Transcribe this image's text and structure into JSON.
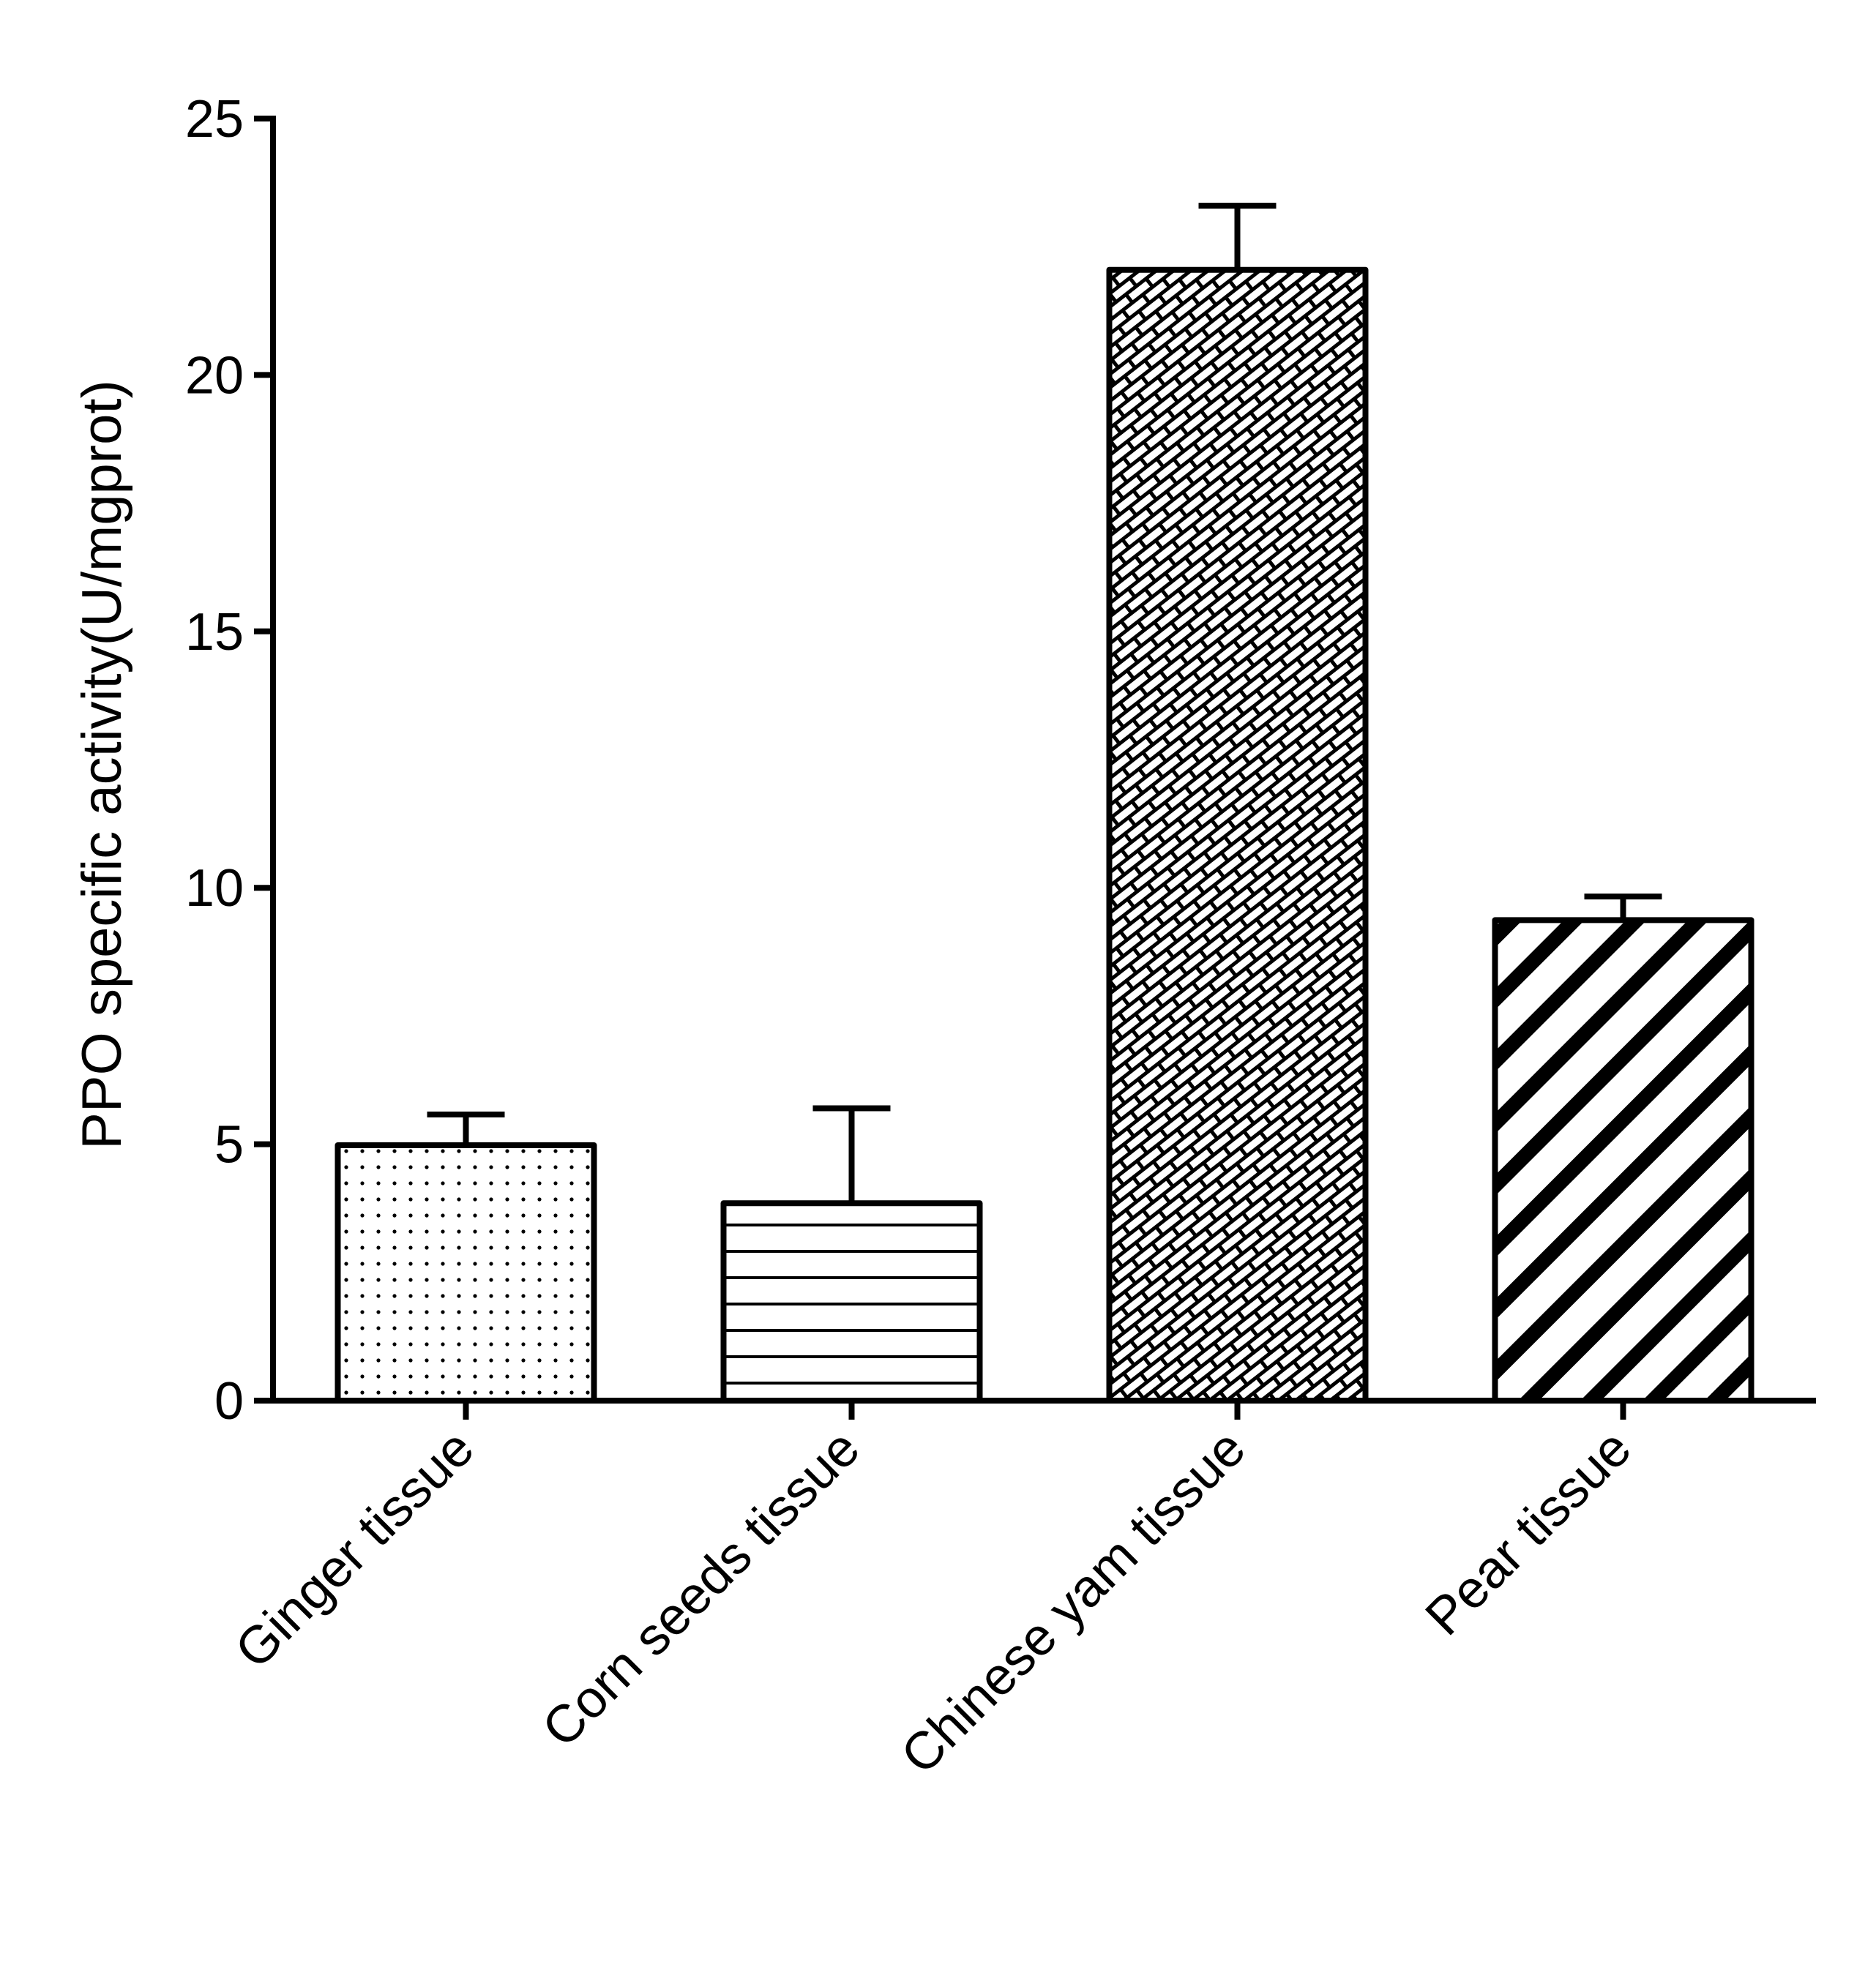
{
  "chart_data": {
    "type": "bar",
    "title": "",
    "xlabel": "",
    "ylabel": "PPO specific activity(U/mgprot)",
    "ylim": [
      0,
      25
    ],
    "yticks": [
      0,
      5,
      10,
      15,
      20,
      25
    ],
    "grid": false,
    "categories": [
      "Ginger tissue",
      "Corn seeds tissue",
      "Chinese yam tissue",
      "Pear tissue"
    ],
    "values": [
      4.98,
      3.85,
      22.05,
      9.37
    ],
    "error_upper": [
      5.58,
      5.7,
      23.3,
      9.83
    ],
    "fill_patterns": [
      "dots",
      "horizontal-lines",
      "brick-crosshatch",
      "diagonal-stripes"
    ],
    "colors": {
      "stroke": "#000000",
      "background": "#ffffff"
    }
  }
}
